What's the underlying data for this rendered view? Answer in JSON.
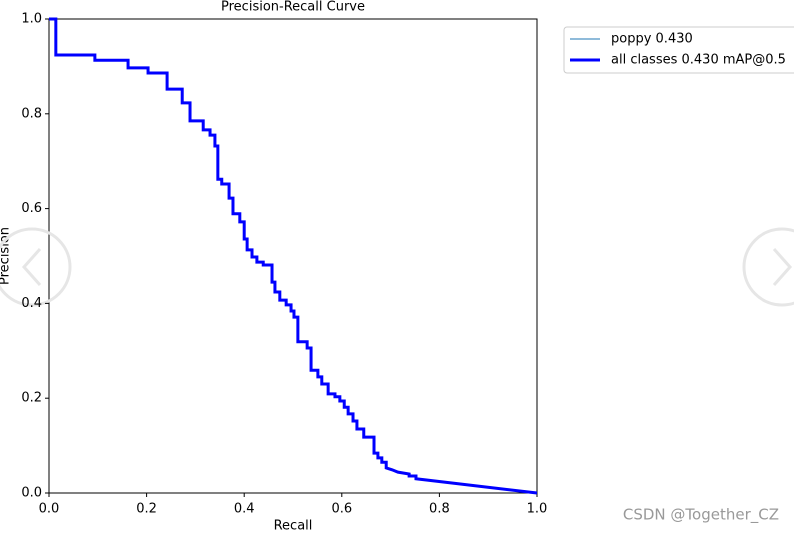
{
  "chart_data": {
    "type": "line",
    "title": "Precision-Recall Curve",
    "xlabel": "Recall",
    "ylabel": "Precision",
    "x": [
      0,
      0.014,
      0.014,
      0.094,
      0.094,
      0.162,
      0.162,
      0.203,
      0.203,
      0.242,
      0.242,
      0.273,
      0.273,
      0.289,
      0.289,
      0.316,
      0.316,
      0.33,
      0.33,
      0.34,
      0.34,
      0.346,
      0.346,
      0.354,
      0.354,
      0.369,
      0.369,
      0.377,
      0.377,
      0.391,
      0.391,
      0.4,
      0.4,
      0.406,
      0.406,
      0.416,
      0.416,
      0.426,
      0.426,
      0.439,
      0.439,
      0.457,
      0.457,
      0.463,
      0.463,
      0.473,
      0.473,
      0.486,
      0.486,
      0.496,
      0.496,
      0.502,
      0.502,
      0.51,
      0.51,
      0.529,
      0.529,
      0.537,
      0.537,
      0.551,
      0.551,
      0.559,
      0.559,
      0.572,
      0.572,
      0.586,
      0.586,
      0.596,
      0.596,
      0.605,
      0.605,
      0.613,
      0.613,
      0.623,
      0.623,
      0.631,
      0.631,
      0.645,
      0.645,
      0.666,
      0.666,
      0.674,
      0.674,
      0.682,
      0.682,
      0.691,
      0.691,
      0.703,
      0.715,
      0.738,
      0.738,
      0.752,
      0.752,
      1.0
    ],
    "series": [
      {
        "name": "poppy 0.430",
        "color": "#1f77b4",
        "width": 1,
        "values": [
          1,
          1,
          0.924,
          0.924,
          0.913,
          0.913,
          0.897,
          0.897,
          0.886,
          0.886,
          0.852,
          0.852,
          0.823,
          0.823,
          0.785,
          0.785,
          0.766,
          0.766,
          0.755,
          0.755,
          0.732,
          0.732,
          0.662,
          0.662,
          0.652,
          0.652,
          0.622,
          0.622,
          0.589,
          0.589,
          0.572,
          0.572,
          0.536,
          0.536,
          0.513,
          0.513,
          0.498,
          0.498,
          0.487,
          0.487,
          0.481,
          0.481,
          0.445,
          0.445,
          0.424,
          0.424,
          0.407,
          0.407,
          0.397,
          0.397,
          0.384,
          0.384,
          0.371,
          0.371,
          0.319,
          0.319,
          0.306,
          0.306,
          0.259,
          0.259,
          0.245,
          0.245,
          0.23,
          0.23,
          0.209,
          0.209,
          0.203,
          0.203,
          0.194,
          0.194,
          0.181,
          0.181,
          0.167,
          0.167,
          0.152,
          0.152,
          0.135,
          0.135,
          0.118,
          0.118,
          0.084,
          0.084,
          0.074,
          0.074,
          0.065,
          0.065,
          0.053,
          0.049,
          0.044,
          0.04,
          0.036,
          0.036,
          0.03,
          0.0
        ]
      },
      {
        "name": "all classes 0.430 mAP@0.5",
        "color": "#0000ff",
        "width": 3,
        "values": [
          1,
          1,
          0.924,
          0.924,
          0.913,
          0.913,
          0.897,
          0.897,
          0.886,
          0.886,
          0.852,
          0.852,
          0.823,
          0.823,
          0.785,
          0.785,
          0.766,
          0.766,
          0.755,
          0.755,
          0.732,
          0.732,
          0.662,
          0.662,
          0.652,
          0.652,
          0.622,
          0.622,
          0.589,
          0.589,
          0.572,
          0.572,
          0.536,
          0.536,
          0.513,
          0.513,
          0.498,
          0.498,
          0.487,
          0.487,
          0.481,
          0.481,
          0.445,
          0.445,
          0.424,
          0.424,
          0.407,
          0.407,
          0.397,
          0.397,
          0.384,
          0.384,
          0.371,
          0.371,
          0.319,
          0.319,
          0.306,
          0.306,
          0.259,
          0.259,
          0.245,
          0.245,
          0.23,
          0.23,
          0.209,
          0.209,
          0.203,
          0.203,
          0.194,
          0.194,
          0.181,
          0.181,
          0.167,
          0.167,
          0.152,
          0.152,
          0.135,
          0.135,
          0.118,
          0.118,
          0.084,
          0.084,
          0.074,
          0.074,
          0.065,
          0.065,
          0.053,
          0.049,
          0.044,
          0.04,
          0.036,
          0.036,
          0.03,
          0.0
        ]
      }
    ],
    "xlim": [
      0,
      1
    ],
    "ylim": [
      0,
      1
    ],
    "xticks": [
      {
        "value": 0,
        "label": "0.0"
      },
      0.2,
      0.4,
      0.6,
      0.8,
      {
        "value": 1,
        "label": "1.0"
      }
    ],
    "yticks": [
      {
        "value": 0,
        "label": "0.0"
      },
      0.2,
      0.4,
      0.6,
      0.8,
      {
        "value": 1,
        "label": "1.0"
      }
    ],
    "legend": "upper right outside"
  },
  "watermark": "CSDN @Together_CZ"
}
